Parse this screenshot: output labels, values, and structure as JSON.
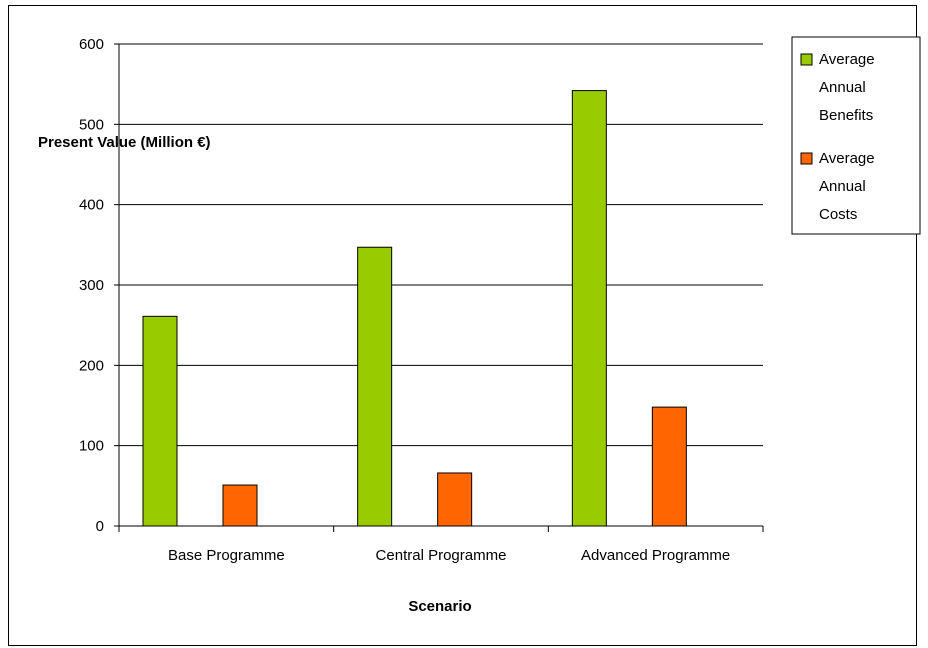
{
  "chart_data": {
    "type": "bar",
    "title": "",
    "xlabel": "Scenario",
    "ylabel": "Present Value (Million €)",
    "categories": [
      "Base Programme",
      "Central Programme",
      "Advanced Programme"
    ],
    "series": [
      {
        "name": "Average Annual Benefits",
        "values": [
          261,
          347,
          542
        ],
        "color": "#99cc00"
      },
      {
        "name": "Average Annual Costs",
        "values": [
          51,
          66,
          148
        ],
        "color": "#ff6600"
      }
    ],
    "ylim": [
      0,
      600
    ],
    "yticks": [
      0,
      100,
      200,
      300,
      400,
      500,
      600
    ],
    "grid": true,
    "legend_position": "top-right"
  }
}
